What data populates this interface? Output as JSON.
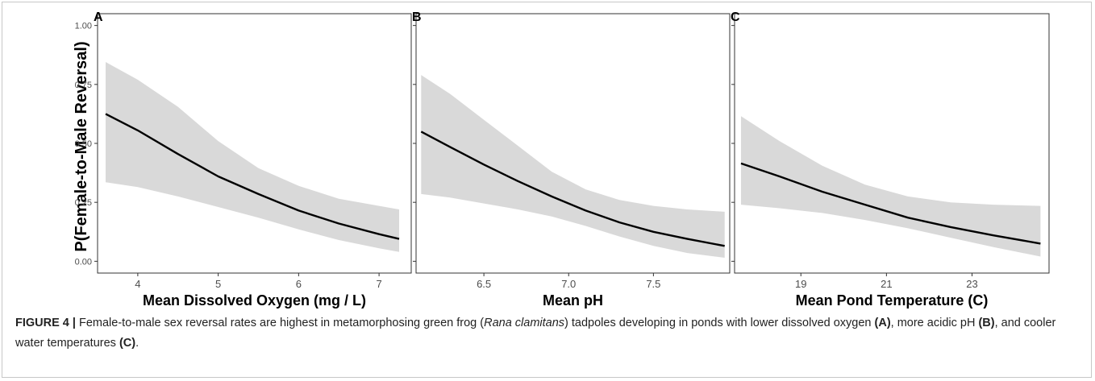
{
  "figure": {
    "ylabel": "P(Female-to-Male Reversal)"
  },
  "chart_data": [
    {
      "type": "line",
      "panel_label": "A",
      "xlabel": "Mean Dissolved Oxygen (mg / L)",
      "ylabel": "P(Female-to-Male Reversal)",
      "xlim": [
        3.5,
        7.4
      ],
      "ylim": [
        -0.05,
        1.05
      ],
      "x_ticks": [
        4,
        5,
        6,
        7
      ],
      "x_tick_labels": [
        "4",
        "5",
        "6",
        "7"
      ],
      "y_ticks": [
        0,
        0.25,
        0.5,
        0.75,
        1.0
      ],
      "y_tick_labels": [
        "0.00",
        "0.25",
        "0.50",
        "0.75",
        "1.00"
      ],
      "grid": false,
      "band_color": "#d9d9d9",
      "line_color": "#000000",
      "series": [
        {
          "x": [
            3.6,
            4.0,
            4.5,
            5.0,
            5.5,
            6.0,
            6.5,
            7.0,
            7.25
          ],
          "y": [
            0.625,
            0.555,
            0.455,
            0.36,
            0.285,
            0.215,
            0.16,
            0.115,
            0.095
          ],
          "lower": [
            0.335,
            0.315,
            0.275,
            0.23,
            0.185,
            0.135,
            0.09,
            0.055,
            0.04
          ],
          "upper": [
            0.845,
            0.77,
            0.655,
            0.51,
            0.395,
            0.32,
            0.265,
            0.235,
            0.22
          ]
        }
      ]
    },
    {
      "type": "line",
      "panel_label": "B",
      "xlabel": "Mean pH",
      "xlim": [
        6.1,
        7.95
      ],
      "ylim": [
        -0.05,
        1.05
      ],
      "x_ticks": [
        6.5,
        7.0,
        7.5
      ],
      "x_tick_labels": [
        "6.5",
        "7.0",
        "7.5"
      ],
      "y_ticks": [
        0,
        0.25,
        0.5,
        0.75,
        1.0
      ],
      "grid": false,
      "band_color": "#d9d9d9",
      "line_color": "#000000",
      "series": [
        {
          "x": [
            6.13,
            6.3,
            6.5,
            6.7,
            6.9,
            7.1,
            7.3,
            7.5,
            7.7,
            7.92
          ],
          "y": [
            0.55,
            0.485,
            0.41,
            0.34,
            0.275,
            0.215,
            0.165,
            0.125,
            0.095,
            0.065
          ],
          "lower": [
            0.285,
            0.27,
            0.245,
            0.22,
            0.19,
            0.15,
            0.105,
            0.065,
            0.035,
            0.015
          ],
          "upper": [
            0.79,
            0.71,
            0.6,
            0.49,
            0.38,
            0.305,
            0.26,
            0.235,
            0.22,
            0.21
          ]
        }
      ]
    },
    {
      "type": "line",
      "panel_label": "C",
      "xlabel": "Mean Pond Temperature (C)",
      "xlim": [
        17.45,
        24.8
      ],
      "ylim": [
        -0.05,
        1.05
      ],
      "x_ticks": [
        19,
        21,
        23
      ],
      "x_tick_labels": [
        "19",
        "21",
        "23"
      ],
      "y_ticks": [
        0,
        0.25,
        0.5,
        0.75,
        1.0
      ],
      "grid": false,
      "band_color": "#d9d9d9",
      "line_color": "#000000",
      "series": [
        {
          "x": [
            17.6,
            18.5,
            19.5,
            20.5,
            21.5,
            22.5,
            23.5,
            24.6
          ],
          "y": [
            0.415,
            0.36,
            0.295,
            0.24,
            0.185,
            0.145,
            0.11,
            0.075
          ],
          "lower": [
            0.24,
            0.225,
            0.205,
            0.175,
            0.14,
            0.1,
            0.06,
            0.02
          ],
          "upper": [
            0.615,
            0.51,
            0.405,
            0.325,
            0.275,
            0.25,
            0.24,
            0.235
          ]
        }
      ]
    }
  ],
  "caption": {
    "label": "FIGURE 4 |",
    "t1": " Female-to-male sex reversal rates are highest in metamorphosing green frog (",
    "species": "Rana clamitans",
    "t2": ") tadpoles developing in ponds with lower dissolved oxygen ",
    "refA": "(A)",
    "t3": ", more acidic pH ",
    "refB": "(B)",
    "t4": ", and cooler water temperatures ",
    "refC": "(C)",
    "t5": "."
  }
}
